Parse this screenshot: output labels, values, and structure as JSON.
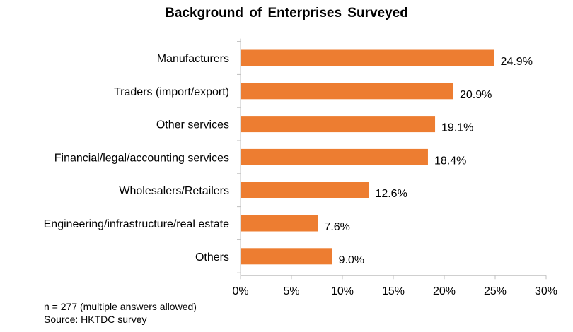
{
  "chart_data": {
    "type": "bar",
    "orientation": "horizontal",
    "title": "Background of Enterprises Surveyed",
    "categories": [
      "Manufacturers",
      "Traders (import/export)",
      "Other services",
      "Financial/legal/accounting services",
      "Wholesalers/Retailers",
      "Engineering/infrastructure/real estate",
      "Others"
    ],
    "values": [
      24.9,
      20.9,
      19.1,
      18.4,
      12.6,
      7.6,
      9.0
    ],
    "value_labels": [
      "24.9%",
      "20.9%",
      "19.1%",
      "18.4%",
      "12.6%",
      "7.6%",
      "9.0%"
    ],
    "xlim": [
      0,
      30
    ],
    "xticks": [
      0,
      5,
      10,
      15,
      20,
      25,
      30
    ],
    "xtick_labels": [
      "0%",
      "5%",
      "10%",
      "15%",
      "20%",
      "25%",
      "30%"
    ],
    "grid": false,
    "legend": "none",
    "bar_color": "#ED7D31"
  },
  "footnotes": {
    "sample": "n = 277 (multiple answers allowed)",
    "source": "Source: HKTDC survey"
  }
}
